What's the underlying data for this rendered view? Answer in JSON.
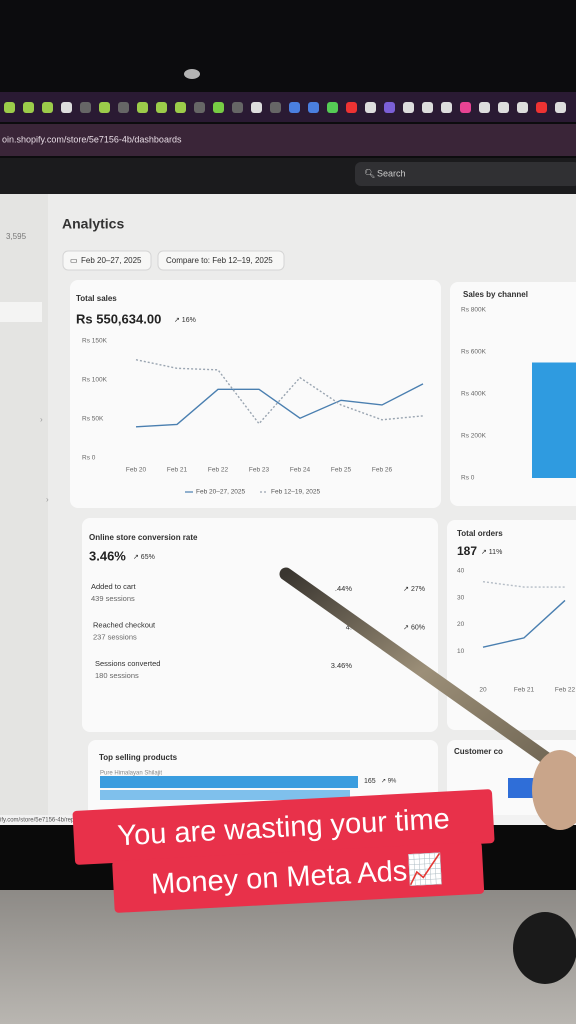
{
  "browser": {
    "url": "oin.shopify.com/store/5e7156-4b/dashboards",
    "search": "Search",
    "status_url": "ify.com/store/5e7156-4b/reports/sessions_over"
  },
  "sidebar": {
    "count": "3,595"
  },
  "header": {
    "title": "Analytics",
    "date_range": "Feb 20–27, 2025",
    "compare": "Compare to: Feb 12–19, 2025"
  },
  "total_sales": {
    "title": "Total sales",
    "value": "Rs 550,634.00",
    "change": "↗ 16%",
    "chart_data": {
      "type": "line",
      "categories": [
        "Feb 20",
        "Feb 21",
        "Feb 22",
        "Feb 23",
        "Feb 24",
        "Feb 25",
        "Feb 26",
        null
      ],
      "ylim": [
        0,
        150000
      ],
      "yticks": [
        {
          "value": 0,
          "label": "Rs 0"
        },
        {
          "value": 50000,
          "label": "Rs 50K"
        },
        {
          "value": 100000,
          "label": "Rs 100K"
        },
        {
          "value": 150000,
          "label": "Rs 150K"
        }
      ],
      "series": [
        {
          "name": "Feb 20–27, 2025",
          "color": "#4a7fb0",
          "dashed": false,
          "values": [
            40000,
            43000,
            88000,
            88000,
            51000,
            74000,
            68000,
            95000
          ]
        },
        {
          "name": "Feb 12–19, 2025",
          "color": "#9aa5b1",
          "dashed": true,
          "values": [
            126000,
            115000,
            113000,
            44000,
            103000,
            68000,
            49000,
            54000
          ]
        }
      ]
    }
  },
  "sales_by_channel": {
    "title": "Sales by channel",
    "chart_data": {
      "type": "bar",
      "categories": [
        null
      ],
      "values": [
        550000
      ],
      "color": "#2f9be0",
      "ylim": [
        0,
        800000
      ],
      "yticks": [
        {
          "value": 0,
          "label": "Rs 0"
        },
        {
          "value": 200000,
          "label": "Rs 200K"
        },
        {
          "value": 400000,
          "label": "Rs 400K"
        },
        {
          "value": 600000,
          "label": "Rs 600K"
        },
        {
          "value": 800000,
          "label": "Rs 800K"
        }
      ]
    }
  },
  "conversion": {
    "title": "Online store conversion rate",
    "value": "3.46%",
    "change": "↗ 65%",
    "rows": [
      {
        "label": "Added to cart",
        "sessions": "439 sessions",
        "rate": ".44%",
        "change": "↗ 27%"
      },
      {
        "label": "Reached checkout",
        "sessions": "237 sessions",
        "rate": "4.",
        "change": "↗ 60%"
      },
      {
        "label": "Sessions converted",
        "sessions": "180 sessions",
        "rate": "3.46%",
        "change": ""
      }
    ]
  },
  "total_orders": {
    "title": "Total orders",
    "value": "187",
    "change": "↗ 11%",
    "chart_data": {
      "type": "line",
      "categories": [
        "20",
        "Feb 21",
        "Feb 22"
      ],
      "ylim": [
        0,
        40
      ],
      "yticks": [
        10,
        20,
        30,
        40
      ],
      "series": [
        {
          "name": "Feb 20–27, 2025",
          "color": "#4a7fb0",
          "dashed": false,
          "values": [
            11.5,
            15,
            29
          ]
        },
        {
          "name": "Feb 12–19, 2025",
          "color": "#b5bdc6",
          "dashed": true,
          "values": [
            36,
            34,
            34
          ]
        }
      ]
    }
  },
  "top_products": {
    "title": "Top selling products",
    "item": "Pure Himalayan Shilajit",
    "value": "165",
    "change": "↗ 9%"
  },
  "customer": {
    "title": "Customer co"
  },
  "caption": [
    "You are wasting your time",
    "Money on Meta Ads📈"
  ]
}
